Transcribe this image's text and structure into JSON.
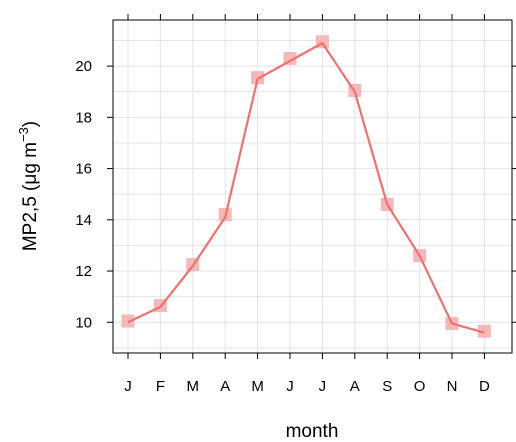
{
  "chart_data": {
    "type": "line",
    "title": "",
    "xlabel": "month",
    "ylabel_main": "MP2,5 (μg m",
    "ylabel_sup": "−3",
    "ylabel_close": ")",
    "categories": [
      "J",
      "F",
      "M",
      "A",
      "M",
      "J",
      "J",
      "A",
      "S",
      "O",
      "N",
      "D"
    ],
    "series": [
      {
        "values": [
          10.0,
          10.6,
          12.2,
          14.1,
          19.5,
          20.2,
          20.9,
          19.0,
          14.6,
          12.6,
          9.95,
          9.6
        ]
      }
    ],
    "markers": [
      10.05,
      10.65,
      12.25,
      14.2,
      19.55,
      20.3,
      20.95,
      19.05,
      14.6,
      12.6,
      9.95,
      9.65
    ],
    "yticks": [
      10,
      12,
      14,
      16,
      18,
      20
    ],
    "ylim": [
      8.8,
      21.8
    ],
    "grid": true,
    "line_color": "#f07070",
    "marker_color": "#f5b8b8"
  }
}
